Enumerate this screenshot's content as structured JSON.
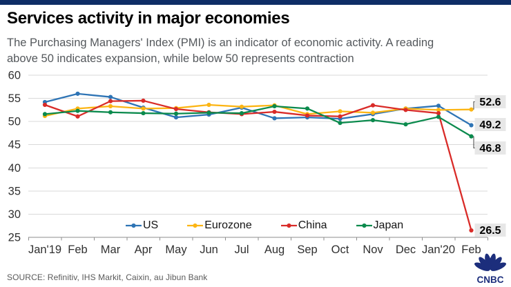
{
  "header": {
    "title": "Services activity in major economies",
    "subtitle_line1": "The Purchasing Managers' Index (PMI) is an indicator of economic activity. A reading",
    "subtitle_line2": "above 50 indicates expansion, while below 50 represents contraction",
    "accent_bar_color": "#0e2d66"
  },
  "footer": {
    "source": "SOURCE: Refinitiv, IHS Markit, Caixin, au Jibun Bank",
    "logo_text": "CNBC",
    "logo_color": "#1c2e7c"
  },
  "chart_data": {
    "type": "line",
    "title": "Services activity in major economies",
    "xlabel": "",
    "ylabel": "",
    "ylim": [
      25,
      60
    ],
    "yticks": [
      25,
      30,
      35,
      40,
      45,
      50,
      55,
      60
    ],
    "grid": "horizontal",
    "legend_position": "bottom-inside",
    "x": [
      "Jan'19",
      "Feb",
      "Mar",
      "Apr",
      "May",
      "Jun",
      "Jul",
      "Aug",
      "Sep",
      "Oct",
      "Nov",
      "Dec",
      "Jan'20",
      "Feb"
    ],
    "series": [
      {
        "name": "US",
        "color": "#2e74b5",
        "values": [
          54.2,
          56.0,
          55.3,
          53.0,
          50.9,
          51.5,
          53.0,
          50.7,
          50.9,
          50.6,
          51.6,
          52.8,
          53.4,
          49.2
        ],
        "end_label": "49.2"
      },
      {
        "name": "Eurozone",
        "color": "#fcb514",
        "values": [
          51.2,
          52.8,
          53.3,
          52.8,
          52.9,
          53.6,
          53.2,
          53.5,
          51.6,
          52.2,
          51.9,
          52.8,
          52.5,
          52.6
        ],
        "end_label": "52.6"
      },
      {
        "name": "China",
        "color": "#d92b28",
        "values": [
          53.6,
          51.1,
          54.4,
          54.5,
          52.7,
          52.0,
          51.6,
          52.1,
          51.3,
          51.1,
          53.5,
          52.5,
          51.8,
          26.5
        ],
        "end_label": "26.5"
      },
      {
        "name": "Japan",
        "color": "#0b8a4d",
        "values": [
          51.6,
          52.3,
          52.0,
          51.8,
          51.7,
          51.9,
          51.8,
          53.3,
          52.8,
          49.7,
          50.3,
          49.4,
          51.0,
          46.8
        ],
        "end_label": "46.8"
      }
    ]
  }
}
